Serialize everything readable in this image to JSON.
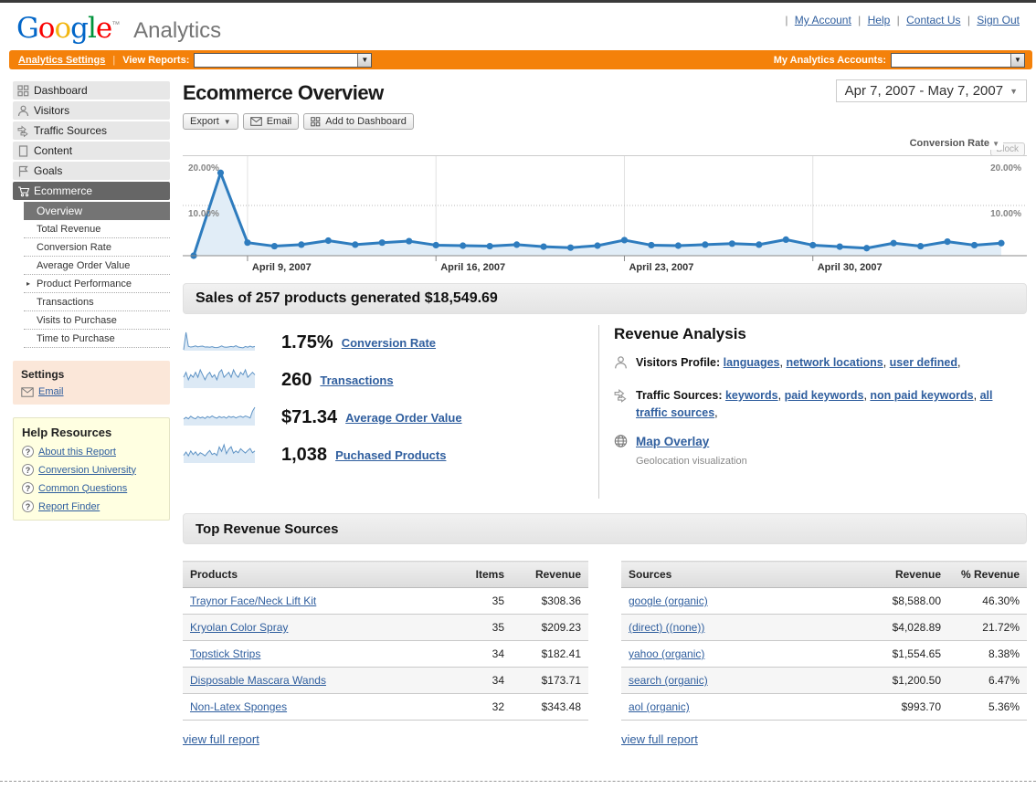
{
  "colors": {
    "accent_orange": "#f4810a",
    "link_blue": "#2f5e9e",
    "chart_line": "#2e7cbe",
    "chart_fill": "#e1edf7"
  },
  "header": {
    "logo_letters": [
      "G",
      "o",
      "o",
      "g",
      "l",
      "e"
    ],
    "logo_tm": "™",
    "product": "Analytics",
    "separator": "|",
    "links": [
      "My Account",
      "Help",
      "Contact Us",
      "Sign Out"
    ]
  },
  "nav_bar": {
    "analytics_settings": "Analytics Settings",
    "view_reports_label": "View Reports:",
    "my_accounts_label": "My Analytics Accounts:",
    "view_reports_value": "",
    "my_accounts_value": "",
    "dropdown_arrow": "▼"
  },
  "sidebar": {
    "items": [
      {
        "label": "Dashboard",
        "icon": "dashboard-grid"
      },
      {
        "label": "Visitors",
        "icon": "person"
      },
      {
        "label": "Traffic Sources",
        "icon": "arrows"
      },
      {
        "label": "Content",
        "icon": "page"
      },
      {
        "label": "Goals",
        "icon": "flag"
      },
      {
        "label": "Ecommerce",
        "icon": "cart",
        "selected": true
      }
    ],
    "ecommerce_sub": {
      "overview": "Overview",
      "total_revenue": "Total Revenue",
      "conversion_rate": "Conversion Rate",
      "avg_order_value": "Average Order Value",
      "product_performance": "Product Performance",
      "product_performance_arrow": "▸",
      "transactions": "Transactions",
      "visits_to_purchase": "Visits to Purchase",
      "time_to_purchase": "Time to Purchase"
    },
    "settings": {
      "title": "Settings",
      "email_label": "Email"
    },
    "help": {
      "title": "Help Resources",
      "q_glyph": "?",
      "items": [
        "About this Report",
        "Conversion University",
        "Common Questions",
        "Report Finder"
      ]
    }
  },
  "main": {
    "title": "Ecommerce Overview",
    "date_range": "Apr 7, 2007 - May 7, 2007",
    "date_arrow": "▼",
    "toolbar": {
      "export_label": "Export",
      "export_arrow": "▼",
      "email_label": "Email",
      "add_to_dashboard_label": "Add to Dashboard"
    },
    "metric_selector": {
      "label": "Conversion Rate",
      "arrow": "▼",
      "ghost_label": "Block"
    },
    "summary": "Sales of 257 products generated $18,549.69",
    "metrics": [
      {
        "value": "1.75%",
        "label": "Conversion Rate",
        "sparkline": [
          0,
          9,
          1.8,
          1.4,
          1.6,
          2,
          1.5,
          1.8,
          1.9,
          1.4,
          1.5,
          1.3,
          1.6,
          1.2,
          1.1,
          1.4,
          2,
          1.4,
          1.3,
          1.5,
          1.7,
          1.5,
          2.1,
          1.4,
          1.2,
          1,
          1.7,
          1.3,
          1.9,
          1.4,
          1.7
        ]
      },
      {
        "value": "260",
        "label": "Transactions",
        "sparkline": [
          4,
          6,
          3,
          5,
          4,
          6,
          4,
          7,
          5,
          3,
          5,
          6,
          4,
          5,
          3,
          6,
          7,
          4,
          5,
          6,
          4,
          7,
          5,
          4,
          6,
          5,
          7,
          4,
          5,
          6,
          5
        ]
      },
      {
        "value": "$71.34",
        "label": "Average Order Value",
        "sparkline": [
          2,
          2.6,
          2.1,
          3,
          2.4,
          2.1,
          2.9,
          2.4,
          2.7,
          2.2,
          2.9,
          2.5,
          3.1,
          2.6,
          2.3,
          2.9,
          2.5,
          2.8,
          2.3,
          3,
          2.6,
          2.9,
          2.4,
          2.8,
          3,
          2.6,
          3.1,
          2.8,
          2.4,
          4.8,
          6.2
        ]
      },
      {
        "value": "1,038",
        "label": "Puchased Products",
        "sparkline": [
          3,
          4.5,
          2.8,
          5,
          3.4,
          4.6,
          3,
          4.2,
          3.6,
          2.8,
          4.1,
          5.2,
          3.4,
          4,
          3,
          6.8,
          4.8,
          7.8,
          3.8,
          5.8,
          6.9,
          4,
          5,
          4.2,
          6,
          5,
          4.1,
          5.2,
          6.1,
          4.2,
          5
        ]
      }
    ],
    "revenue_analysis": {
      "title": "Revenue Analysis",
      "visitors_profile_label": "Visitors Profile:",
      "visitors_links": [
        {
          "label": "languages",
          "suffix": ", "
        },
        {
          "label": "network locations",
          "suffix": ", "
        },
        {
          "label": "user defined",
          "suffix": ","
        }
      ],
      "traffic_label": "Traffic Sources:",
      "traffic_links": [
        {
          "label": "keywords",
          "suffix": ", "
        },
        {
          "label": "paid keywords",
          "suffix": ", "
        },
        {
          "label": "non paid keywords",
          "suffix": ", "
        },
        {
          "label": "all traffic sources",
          "suffix": ","
        }
      ],
      "map_overlay_label": "Map Overlay",
      "map_caption": "Geolocation visualization"
    },
    "top_revenue": {
      "title": "Top Revenue Sources",
      "products_table": {
        "headers": [
          "Products",
          "Items",
          "Revenue"
        ],
        "rows": [
          {
            "name": "Traynor Face/Neck Lift Kit",
            "items": "35",
            "revenue": "$308.36"
          },
          {
            "name": "Kryolan Color Spray",
            "items": "35",
            "revenue": "$209.23"
          },
          {
            "name": "Topstick Strips",
            "items": "34",
            "revenue": "$182.41"
          },
          {
            "name": "Disposable Mascara Wands",
            "items": "34",
            "revenue": "$173.71"
          },
          {
            "name": "Non-Latex Sponges",
            "items": "32",
            "revenue": "$343.48"
          }
        ],
        "footer_link": "view full report"
      },
      "sources_table": {
        "headers": [
          "Sources",
          "Revenue",
          "% Revenue"
        ],
        "rows": [
          {
            "name": "google (organic)",
            "revenue": "$8,588.00",
            "pct": "46.30%"
          },
          {
            "name": "(direct) ((none))",
            "revenue": "$4,028.89",
            "pct": "21.72%"
          },
          {
            "name": "yahoo (organic)",
            "revenue": "$1,554.65",
            "pct": "8.38%"
          },
          {
            "name": "search (organic)",
            "revenue": "$1,200.50",
            "pct": "6.47%"
          },
          {
            "name": "aol (organic)",
            "revenue": "$993.70",
            "pct": "5.36%"
          }
        ],
        "footer_link": "view full report"
      }
    }
  },
  "chart_data": {
    "type": "line",
    "title": "Conversion Rate",
    "x": [
      "Apr 7",
      "Apr 8",
      "Apr 9",
      "Apr 10",
      "Apr 11",
      "Apr 12",
      "Apr 13",
      "Apr 14",
      "Apr 15",
      "Apr 16",
      "Apr 17",
      "Apr 18",
      "Apr 19",
      "Apr 20",
      "Apr 21",
      "Apr 22",
      "Apr 23",
      "Apr 24",
      "Apr 25",
      "Apr 26",
      "Apr 27",
      "Apr 28",
      "Apr 29",
      "Apr 30",
      "May 1",
      "May 2",
      "May 3",
      "May 4",
      "May 5",
      "May 6",
      "May 7"
    ],
    "values": [
      0,
      16.5,
      2.6,
      1.9,
      2.2,
      3.0,
      2.2,
      2.6,
      2.9,
      2.1,
      2.0,
      1.9,
      2.2,
      1.8,
      1.6,
      2.0,
      3.1,
      2.1,
      2.0,
      2.2,
      2.4,
      2.2,
      3.2,
      2.1,
      1.8,
      1.5,
      2.5,
      1.9,
      2.8,
      2.1,
      2.5
    ],
    "ylabel": "Conversion Rate (%)",
    "ylim": [
      0,
      20
    ],
    "yticks": [
      10,
      20
    ],
    "ytick_labels": [
      "10.00%",
      "20.00%"
    ],
    "xtick_indices": [
      2,
      9,
      16,
      23
    ],
    "xtick_labels": [
      "April 9, 2007",
      "April 16, 2007",
      "April 23, 2007",
      "April 30, 2007"
    ],
    "grid": "vertical-at-weeks, dotted-10pct",
    "legend_position": "none",
    "line_color": "#2e7cbe",
    "fill_color": "#e1edf7"
  }
}
